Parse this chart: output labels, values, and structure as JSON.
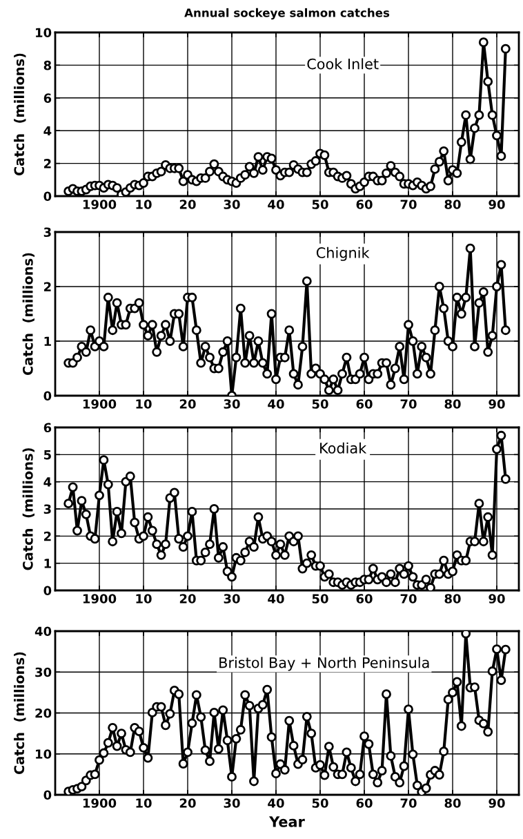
{
  "chart_data": [
    {
      "type": "line",
      "title": "Annual sockeye salmon catches",
      "ylabel": "Catch  (millions)",
      "x": [
        1893,
        1894,
        1895,
        1896,
        1897,
        1898,
        1899,
        1900,
        1901,
        1902,
        1903,
        1904,
        1905,
        1906,
        1907,
        1908,
        1909,
        1910,
        1911,
        1912,
        1913,
        1914,
        1915,
        1916,
        1917,
        1918,
        1919,
        1920,
        1921,
        1922,
        1923,
        1924,
        1925,
        1926,
        1927,
        1928,
        1929,
        1930,
        1931,
        1932,
        1933,
        1934,
        1935,
        1936,
        1937,
        1938,
        1939,
        1940,
        1941,
        1942,
        1943,
        1944,
        1945,
        1946,
        1947,
        1948,
        1949,
        1950,
        1951,
        1952,
        1953,
        1954,
        1955,
        1956,
        1957,
        1958,
        1959,
        1960,
        1961,
        1962,
        1963,
        1964,
        1965,
        1966,
        1967,
        1968,
        1969,
        1970,
        1971,
        1972,
        1973,
        1974,
        1975,
        1976,
        1977,
        1978,
        1979,
        1980,
        1981,
        1982,
        1983,
        1984,
        1985,
        1986,
        1987,
        1988,
        1989,
        1990,
        1991,
        1992
      ],
      "series": [
        {
          "name": "Cook Inlet",
          "color": "#000000",
          "values": [
            0.3,
            0.45,
            0.3,
            0.3,
            0.4,
            0.6,
            0.65,
            0.65,
            0.5,
            0.7,
            0.65,
            0.5,
            0.1,
            0.25,
            0.5,
            0.7,
            0.65,
            0.8,
            1.2,
            1.2,
            1.4,
            1.5,
            1.9,
            1.7,
            1.7,
            1.7,
            0.9,
            1.3,
            1.0,
            0.9,
            1.1,
            1.1,
            1.5,
            1.95,
            1.5,
            1.2,
            1.0,
            0.9,
            0.8,
            1.1,
            1.3,
            1.8,
            1.4,
            2.4,
            1.6,
            2.4,
            2.3,
            1.6,
            1.25,
            1.45,
            1.45,
            1.9,
            1.65,
            1.45,
            1.45,
            1.95,
            2.15,
            2.6,
            2.5,
            1.45,
            1.45,
            1.2,
            1.1,
            1.25,
            0.75,
            0.45,
            0.6,
            0.85,
            1.2,
            1.2,
            0.95,
            0.95,
            1.4,
            1.85,
            1.45,
            1.2,
            0.75,
            0.75,
            0.65,
            0.85,
            0.65,
            0.45,
            0.6,
            1.65,
            2.1,
            2.75,
            0.95,
            1.6,
            1.4,
            3.3,
            4.95,
            2.25,
            4.15,
            4.95,
            9.4,
            7.0,
            4.95,
            3.7,
            2.45,
            9.0
          ]
        }
      ],
      "xlim": [
        1890,
        1995
      ],
      "xticks": [
        1900,
        {
          "value": 1910,
          "label": "10"
        },
        {
          "value": 1920,
          "label": "20"
        },
        {
          "value": 1930,
          "label": "30"
        },
        {
          "value": 1940,
          "label": "40"
        },
        {
          "value": 1950,
          "label": "50"
        },
        {
          "value": 1960,
          "label": "60"
        },
        {
          "value": 1970,
          "label": "70"
        },
        {
          "value": 1980,
          "label": "80"
        },
        {
          "value": 1990,
          "label": "90"
        }
      ],
      "ylim": [
        0,
        10
      ],
      "yticks": [
        0,
        2,
        4,
        6,
        8,
        10
      ],
      "grid": true,
      "legend": false,
      "marker": "circle",
      "line_style": "solid"
    },
    {
      "type": "line",
      "ylabel": "Catch  (millions)",
      "x": [
        1893,
        1894,
        1895,
        1896,
        1897,
        1898,
        1899,
        1900,
        1901,
        1902,
        1903,
        1904,
        1905,
        1906,
        1907,
        1908,
        1909,
        1910,
        1911,
        1912,
        1913,
        1914,
        1915,
        1916,
        1917,
        1918,
        1919,
        1920,
        1921,
        1922,
        1923,
        1924,
        1925,
        1926,
        1927,
        1928,
        1929,
        1930,
        1931,
        1932,
        1933,
        1934,
        1935,
        1936,
        1937,
        1938,
        1939,
        1940,
        1941,
        1942,
        1943,
        1944,
        1945,
        1946,
        1947,
        1948,
        1949,
        1950,
        1951,
        1952,
        1953,
        1954,
        1955,
        1956,
        1957,
        1958,
        1959,
        1960,
        1961,
        1962,
        1963,
        1964,
        1965,
        1966,
        1967,
        1968,
        1969,
        1970,
        1971,
        1972,
        1973,
        1974,
        1975,
        1976,
        1977,
        1978,
        1979,
        1980,
        1981,
        1982,
        1983,
        1984,
        1985,
        1986,
        1987,
        1988,
        1989,
        1990,
        1991,
        1992
      ],
      "series": [
        {
          "name": "Chignik",
          "color": "#000000",
          "values": [
            0.6,
            0.6,
            0.7,
            0.9,
            0.8,
            1.2,
            0.9,
            1.0,
            0.9,
            1.8,
            1.2,
            1.7,
            1.3,
            1.3,
            1.6,
            1.6,
            1.7,
            1.3,
            1.1,
            1.3,
            0.8,
            1.1,
            1.3,
            1.0,
            1.5,
            1.5,
            0.9,
            1.8,
            1.8,
            1.2,
            0.6,
            0.9,
            0.7,
            0.5,
            0.5,
            0.8,
            1.0,
            0.0,
            0.7,
            1.6,
            0.6,
            1.1,
            0.6,
            1.0,
            0.6,
            0.4,
            1.5,
            0.3,
            0.7,
            0.7,
            1.2,
            0.4,
            0.2,
            0.9,
            2.1,
            0.4,
            0.5,
            0.4,
            0.3,
            0.1,
            0.3,
            0.1,
            0.4,
            0.7,
            0.3,
            0.3,
            0.4,
            0.7,
            0.3,
            0.4,
            0.4,
            0.6,
            0.6,
            0.2,
            0.5,
            0.9,
            0.3,
            1.3,
            1.0,
            0.4,
            0.9,
            0.7,
            0.4,
            1.2,
            2.0,
            1.6,
            1.0,
            0.9,
            1.8,
            1.5,
            1.8,
            2.7,
            0.9,
            1.7,
            1.9,
            0.8,
            1.1,
            2.0,
            2.4,
            1.2
          ]
        }
      ],
      "xlim": [
        1890,
        1995
      ],
      "xticks": [
        1900,
        {
          "value": 1910,
          "label": "10"
        },
        {
          "value": 1920,
          "label": "20"
        },
        {
          "value": 1930,
          "label": "30"
        },
        {
          "value": 1940,
          "label": "40"
        },
        {
          "value": 1950,
          "label": "50"
        },
        {
          "value": 1960,
          "label": "60"
        },
        {
          "value": 1970,
          "label": "70"
        },
        {
          "value": 1980,
          "label": "80"
        },
        {
          "value": 1990,
          "label": "90"
        }
      ],
      "ylim": [
        0,
        3
      ],
      "yticks": [
        0,
        1,
        2,
        3
      ],
      "grid": true,
      "legend": "top",
      "marker": "circle",
      "line_style": "solid"
    },
    {
      "type": "line",
      "ylabel": "Catch  (millions)",
      "x": [
        1893,
        1894,
        1895,
        1896,
        1897,
        1898,
        1899,
        1900,
        1901,
        1902,
        1903,
        1904,
        1905,
        1906,
        1907,
        1908,
        1909,
        1910,
        1911,
        1912,
        1913,
        1914,
        1915,
        1916,
        1917,
        1918,
        1919,
        1920,
        1921,
        1922,
        1923,
        1924,
        1925,
        1926,
        1927,
        1928,
        1929,
        1930,
        1931,
        1932,
        1933,
        1934,
        1935,
        1936,
        1937,
        1938,
        1939,
        1940,
        1941,
        1942,
        1943,
        1944,
        1945,
        1946,
        1947,
        1948,
        1949,
        1950,
        1951,
        1952,
        1953,
        1954,
        1955,
        1956,
        1957,
        1958,
        1959,
        1960,
        1961,
        1962,
        1963,
        1964,
        1965,
        1966,
        1967,
        1968,
        1969,
        1970,
        1971,
        1972,
        1973,
        1974,
        1975,
        1976,
        1977,
        1978,
        1979,
        1980,
        1981,
        1982,
        1983,
        1984,
        1985,
        1986,
        1987,
        1988,
        1989,
        1990,
        1991,
        1992
      ],
      "series": [
        {
          "name": "Kodiak",
          "color": "#000000",
          "values": [
            3.2,
            3.8,
            2.2,
            3.3,
            2.8,
            2.0,
            1.9,
            3.5,
            4.8,
            3.9,
            1.8,
            2.9,
            2.1,
            4.0,
            4.2,
            2.5,
            1.9,
            2.0,
            2.7,
            2.2,
            1.7,
            1.3,
            1.7,
            3.4,
            3.6,
            1.9,
            1.6,
            2.0,
            2.9,
            1.1,
            1.1,
            1.4,
            1.7,
            3.0,
            1.2,
            1.6,
            0.7,
            0.5,
            1.2,
            1.1,
            1.4,
            1.8,
            1.6,
            2.7,
            1.9,
            2.0,
            1.8,
            1.3,
            1.7,
            1.3,
            2.0,
            1.8,
            2.0,
            0.8,
            1.0,
            1.3,
            0.9,
            0.9,
            0.5,
            0.6,
            0.3,
            0.3,
            0.2,
            0.3,
            0.2,
            0.3,
            0.3,
            0.4,
            0.4,
            0.8,
            0.4,
            0.5,
            0.3,
            0.6,
            0.3,
            0.8,
            0.6,
            0.9,
            0.5,
            0.2,
            0.2,
            0.4,
            0.1,
            0.6,
            0.6,
            1.1,
            0.6,
            0.7,
            1.3,
            1.1,
            1.1,
            1.8,
            1.8,
            3.2,
            1.8,
            2.7,
            1.3,
            5.2,
            5.7,
            4.1
          ]
        }
      ],
      "xlim": [
        1890,
        1995
      ],
      "xticks": [
        1900,
        {
          "value": 1910,
          "label": "10"
        },
        {
          "value": 1920,
          "label": "20"
        },
        {
          "value": 1930,
          "label": "30"
        },
        {
          "value": 1940,
          "label": "40"
        },
        {
          "value": 1950,
          "label": "50"
        },
        {
          "value": 1960,
          "label": "60"
        },
        {
          "value": 1970,
          "label": "70"
        },
        {
          "value": 1980,
          "label": "80"
        },
        {
          "value": 1990,
          "label": "90"
        }
      ],
      "ylim": [
        0,
        6
      ],
      "yticks": [
        0,
        1,
        2,
        3,
        4,
        5,
        6
      ],
      "grid": true,
      "legend": "top",
      "marker": "circle",
      "line_style": "solid"
    },
    {
      "type": "line",
      "xlabel": "Year",
      "ylabel": "Catch  (millions)",
      "x": [
        1893,
        1894,
        1895,
        1896,
        1897,
        1898,
        1899,
        1900,
        1901,
        1902,
        1903,
        1904,
        1905,
        1906,
        1907,
        1908,
        1909,
        1910,
        1911,
        1912,
        1913,
        1914,
        1915,
        1916,
        1917,
        1918,
        1919,
        1920,
        1921,
        1922,
        1923,
        1924,
        1925,
        1926,
        1927,
        1928,
        1929,
        1930,
        1931,
        1932,
        1933,
        1934,
        1935,
        1936,
        1937,
        1938,
        1939,
        1940,
        1941,
        1942,
        1943,
        1944,
        1945,
        1946,
        1947,
        1948,
        1949,
        1950,
        1951,
        1952,
        1953,
        1954,
        1955,
        1956,
        1957,
        1958,
        1959,
        1960,
        1961,
        1962,
        1963,
        1964,
        1965,
        1966,
        1967,
        1968,
        1969,
        1970,
        1971,
        1972,
        1973,
        1974,
        1975,
        1976,
        1977,
        1978,
        1979,
        1980,
        1981,
        1982,
        1983,
        1984,
        1985,
        1986,
        1987,
        1988,
        1989,
        1990,
        1991,
        1992
      ],
      "series": [
        {
          "name": "Bristol Bay + North Peninsula",
          "color": "#000000",
          "values": [
            0.8,
            1.2,
            1.5,
            2.0,
            3.5,
            4.8,
            5.0,
            8.5,
            10.2,
            12.7,
            16.4,
            11.9,
            15.0,
            11.0,
            10.4,
            16.4,
            15.5,
            11.5,
            9.0,
            20.1,
            21.5,
            21.5,
            17.0,
            19.8,
            25.5,
            24.6,
            7.6,
            10.4,
            17.5,
            24.4,
            19.0,
            10.9,
            8.2,
            20.1,
            11.2,
            20.7,
            13.3,
            4.4,
            13.7,
            15.9,
            24.4,
            21.8,
            3.3,
            21.1,
            22.0,
            25.7,
            14.1,
            5.2,
            7.5,
            6.1,
            18.1,
            12.0,
            7.5,
            8.6,
            19.1,
            15.0,
            6.6,
            7.3,
            4.8,
            11.8,
            6.8,
            5.0,
            5.0,
            10.4,
            6.6,
            3.3,
            5.0,
            14.3,
            12.4,
            5.0,
            3.0,
            5.9,
            24.6,
            9.5,
            4.4,
            3.0,
            7.0,
            20.9,
            9.9,
            2.3,
            0.7,
            1.6,
            4.9,
            5.9,
            4.9,
            10.6,
            23.3,
            25.0,
            27.6,
            16.8,
            39.4,
            26.2,
            26.3,
            18.2,
            17.4,
            15.4,
            30.2,
            35.6,
            28.0,
            35.5
          ]
        }
      ],
      "xlim": [
        1890,
        1995
      ],
      "xticks": [
        1900,
        {
          "value": 1910,
          "label": "10"
        },
        {
          "value": 1920,
          "label": "20"
        },
        {
          "value": 1930,
          "label": "30"
        },
        {
          "value": 1940,
          "label": "40"
        },
        {
          "value": 1950,
          "label": "50"
        },
        {
          "value": 1960,
          "label": "60"
        },
        {
          "value": 1970,
          "label": "70"
        },
        {
          "value": 1980,
          "label": "80"
        },
        {
          "value": 1990,
          "label": "90"
        }
      ],
      "ylim": [
        0,
        40
      ],
      "yticks": [
        0,
        10,
        20,
        30,
        40
      ],
      "grid": true,
      "legend": false,
      "marker": "circle",
      "line_style": "solid"
    }
  ]
}
